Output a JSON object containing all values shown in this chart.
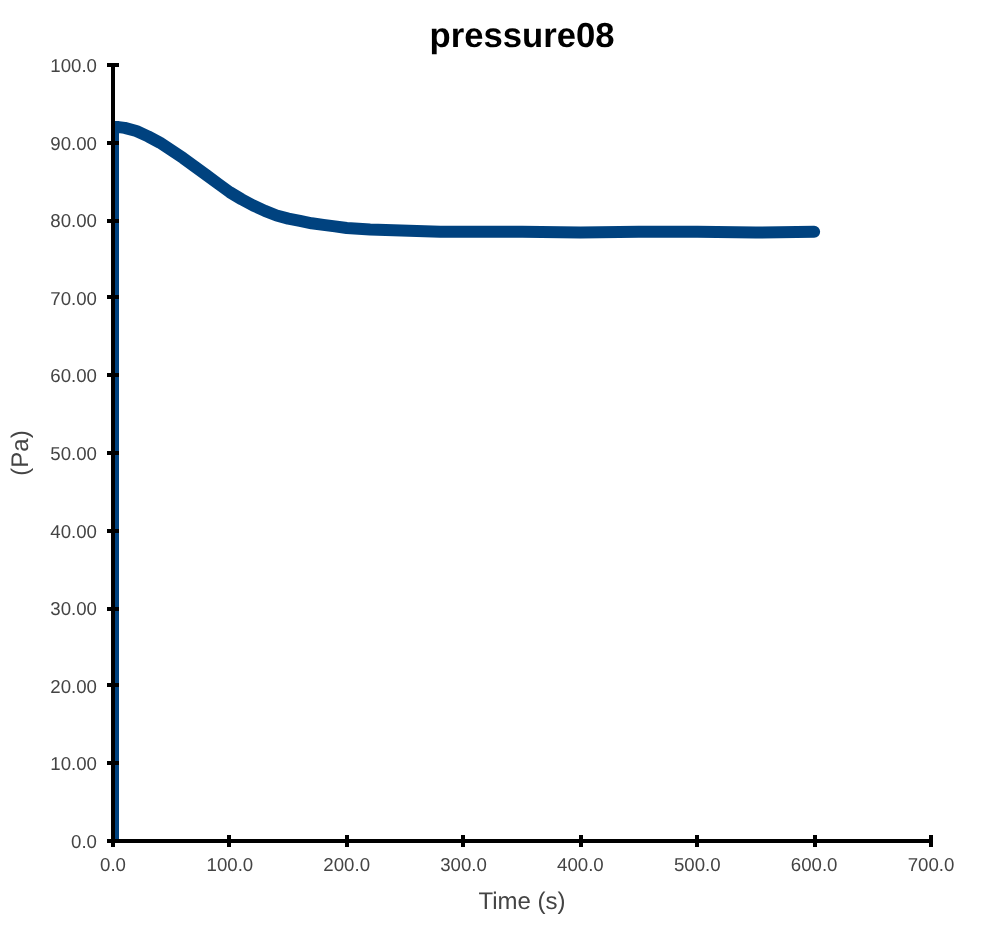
{
  "chart_data": {
    "type": "line",
    "title": "pressure08",
    "xlabel": "Time (s)",
    "ylabel": "(Pa)",
    "x": [
      0,
      0,
      5,
      10,
      20,
      30,
      40,
      50,
      60,
      70,
      80,
      90,
      100,
      110,
      120,
      130,
      140,
      150,
      160,
      170,
      180,
      190,
      200,
      220,
      240,
      260,
      280,
      300,
      350,
      400,
      450,
      500,
      550,
      600
    ],
    "series": [
      {
        "color": "#00427f",
        "values": [
          0,
          92,
          92,
          91.9,
          91.5,
          90.8,
          90,
          89,
          88,
          86.9,
          85.8,
          84.7,
          83.6,
          82.7,
          81.9,
          81.2,
          80.6,
          80.2,
          79.9,
          79.6,
          79.4,
          79.2,
          79,
          78.8,
          78.7,
          78.6,
          78.5,
          78.5,
          78.5,
          78.4,
          78.5,
          78.5,
          78.4,
          78.5
        ]
      }
    ],
    "xlim": [
      0,
      700
    ],
    "ylim": [
      0,
      100
    ],
    "xticks": [
      {
        "value": 0,
        "label": "0.0"
      },
      {
        "value": 100,
        "label": "100.0"
      },
      {
        "value": 200,
        "label": "200.0"
      },
      {
        "value": 300,
        "label": "300.0"
      },
      {
        "value": 400,
        "label": "400.0"
      },
      {
        "value": 500,
        "label": "500.0"
      },
      {
        "value": 600,
        "label": "600.0"
      },
      {
        "value": 700,
        "label": "700.0"
      }
    ],
    "yticks": [
      {
        "value": 0,
        "label": "0.0"
      },
      {
        "value": 10,
        "label": "10.00"
      },
      {
        "value": 20,
        "label": "20.00"
      },
      {
        "value": 30,
        "label": "30.00"
      },
      {
        "value": 40,
        "label": "40.00"
      },
      {
        "value": 50,
        "label": "50.00"
      },
      {
        "value": 60,
        "label": "60.00"
      },
      {
        "value": 70,
        "label": "70.00"
      },
      {
        "value": 80,
        "label": "80.00"
      },
      {
        "value": 90,
        "label": "90.00"
      },
      {
        "value": 100,
        "label": "100.0"
      }
    ],
    "grid": false,
    "marker": "none",
    "line_style": "solid"
  }
}
